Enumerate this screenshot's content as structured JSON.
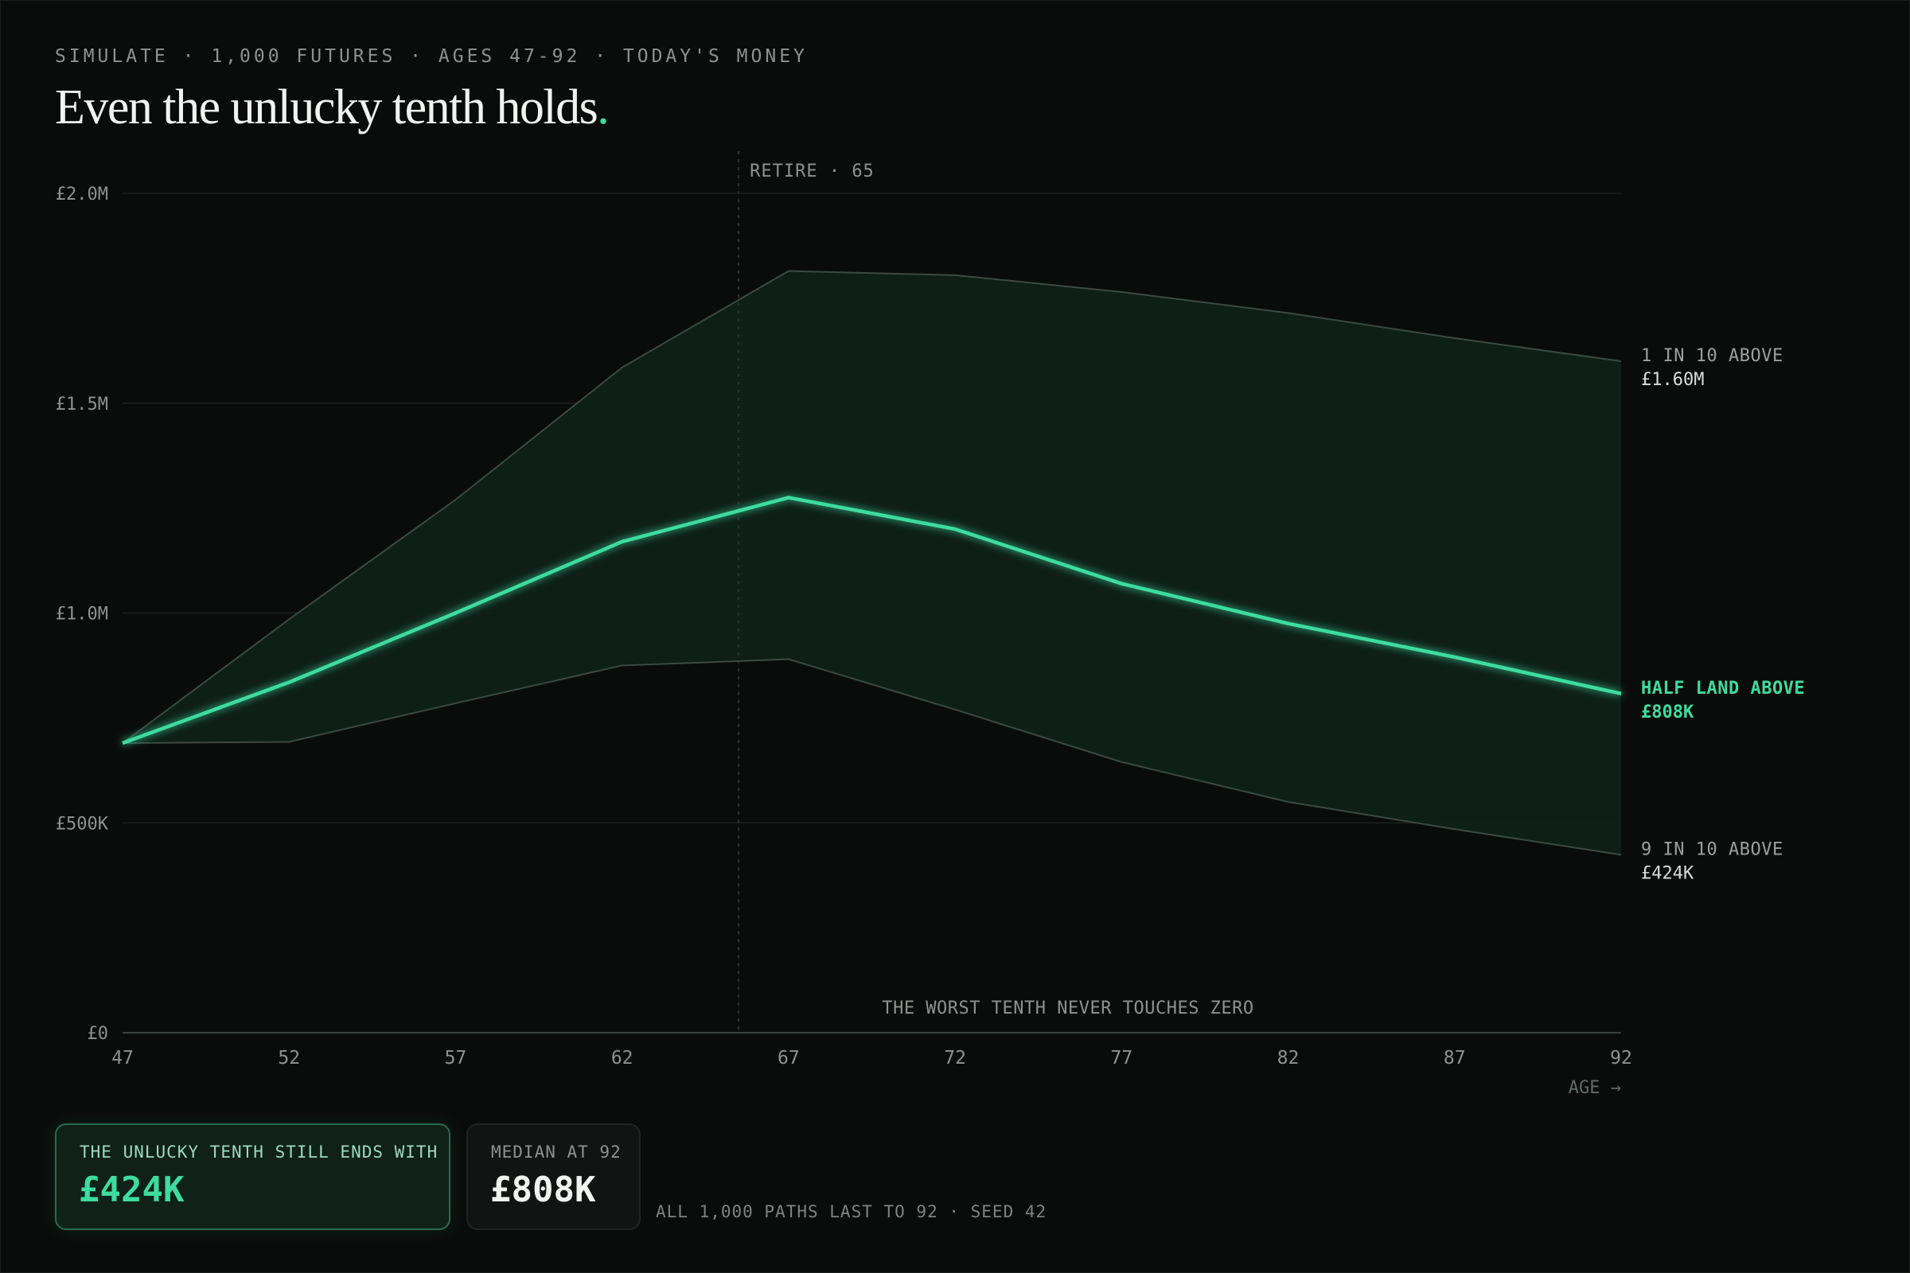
{
  "header": {
    "eyebrow": "SIMULATE · 1,000 FUTURES · AGES 47-92 · TODAY'S MONEY",
    "headline": "Even the unlucky tenth holds",
    "headline_dot": "."
  },
  "chart_data": {
    "type": "area",
    "x": [
      47,
      52,
      57,
      62,
      67,
      72,
      77,
      82,
      87,
      92
    ],
    "xlabel": "AGE →",
    "ylabel": "",
    "xlim": [
      47,
      92
    ],
    "ylim": [
      0,
      2000000
    ],
    "x_ticks": [
      "47",
      "52",
      "57",
      "62",
      "67",
      "72",
      "77",
      "82",
      "87",
      "92"
    ],
    "y_ticks": [
      {
        "value": 0,
        "label": "£0"
      },
      {
        "value": 500000,
        "label": "£500K"
      },
      {
        "value": 1000000,
        "label": "£1.0M"
      },
      {
        "value": 1500000,
        "label": "£1.5M"
      },
      {
        "value": 2000000,
        "label": "£2.0M"
      }
    ],
    "grid": true,
    "series": [
      {
        "role": "p90",
        "values": [
          690000,
          985000,
          1270000,
          1585000,
          1815000,
          1805000,
          1765000,
          1715000,
          1655000,
          1600000
        ],
        "end_label": "1 IN 10 ABOVE",
        "end_value": "£1.60M"
      },
      {
        "role": "median",
        "values": [
          690000,
          835000,
          1000000,
          1170000,
          1275000,
          1200000,
          1070000,
          975000,
          895000,
          808000
        ],
        "end_label": "HALF LAND ABOVE",
        "end_value": "£808K"
      },
      {
        "role": "p10",
        "values": [
          690000,
          693000,
          785000,
          875000,
          890000,
          770000,
          645000,
          550000,
          485000,
          424000
        ],
        "end_label": "9 IN 10 ABOVE",
        "end_value": "£424K"
      }
    ],
    "annotations": {
      "retire_age": 65.5,
      "retire_label": "RETIRE · 65",
      "bottom_note": "THE WORST TENTH NEVER TOUCHES ZERO"
    },
    "colors": {
      "median": "#3ddc9f",
      "band_fill": "#0f2119",
      "band_edge": "#3a4a42",
      "grid": "#1b201d",
      "axis_text": "#8c938f"
    }
  },
  "stats": {
    "unlucky_label": "THE UNLUCKY TENTH STILL ENDS WITH",
    "unlucky_value": "£424K",
    "median_label": "MEDIAN AT 92",
    "median_value": "£808K",
    "footnote": "ALL 1,000 PATHS LAST TO 92 · SEED 42"
  }
}
